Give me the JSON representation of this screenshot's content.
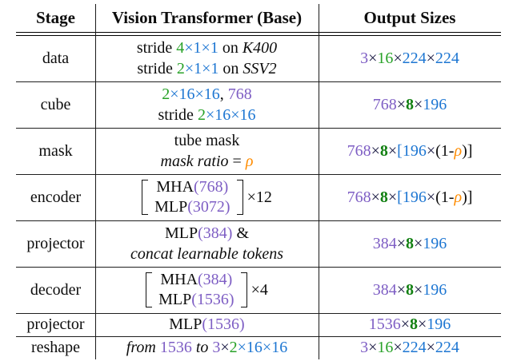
{
  "header": {
    "stage": "Stage",
    "middle": "Vision Transformer (Base)",
    "output": "Output Sizes"
  },
  "colors": {
    "text": "#0d0d0d",
    "green": "#28a228",
    "bold_green": "#128012",
    "blue": "#1d76d2",
    "purple": "#7e5ec4",
    "orange": "#ff8c00",
    "times": "#15153f"
  },
  "rows": [
    {
      "stage": "data",
      "lines": [
        [
          {
            "t": "stride ",
            "c": "text"
          },
          {
            "t": "4",
            "c": "green"
          },
          {
            "t": "×1×1",
            "c": "blue"
          },
          {
            "t": " on ",
            "c": "text"
          },
          {
            "t": "K400",
            "c": "text",
            "i": true
          }
        ],
        [
          {
            "t": "stride ",
            "c": "text"
          },
          {
            "t": "2",
            "c": "green"
          },
          {
            "t": "×1×1",
            "c": "blue"
          },
          {
            "t": " on ",
            "c": "text"
          },
          {
            "t": "SSV2",
            "c": "text",
            "i": true
          }
        ]
      ],
      "output": [
        {
          "t": "3",
          "c": "purple"
        },
        {
          "t": "×",
          "c": "times"
        },
        {
          "t": "16",
          "c": "green"
        },
        {
          "t": "×",
          "c": "times"
        },
        {
          "t": "224",
          "c": "blue"
        },
        {
          "t": "×",
          "c": "times"
        },
        {
          "t": "224",
          "c": "blue"
        }
      ]
    },
    {
      "stage": "cube",
      "lines": [
        [
          {
            "t": "2",
            "c": "green"
          },
          {
            "t": "×16×16",
            "c": "blue"
          },
          {
            "t": ", ",
            "c": "text"
          },
          {
            "t": "768",
            "c": "purple"
          }
        ],
        [
          {
            "t": "stride ",
            "c": "text"
          },
          {
            "t": "2",
            "c": "green"
          },
          {
            "t": "×16×16",
            "c": "blue"
          }
        ]
      ],
      "output": [
        {
          "t": "768",
          "c": "purple"
        },
        {
          "t": "×",
          "c": "times"
        },
        {
          "t": "8",
          "c": "bold_green",
          "b": true
        },
        {
          "t": "×",
          "c": "times"
        },
        {
          "t": "196",
          "c": "blue"
        }
      ]
    },
    {
      "stage": "mask",
      "lines": [
        [
          {
            "t": "tube mask",
            "c": "text"
          }
        ],
        [
          {
            "t": "mask ratio",
            "c": "text",
            "i": true
          },
          {
            "t": " = ",
            "c": "text"
          },
          {
            "t": "ρ",
            "c": "orange",
            "i": true
          }
        ]
      ],
      "output": [
        {
          "t": "768",
          "c": "purple"
        },
        {
          "t": "×",
          "c": "times"
        },
        {
          "t": "8",
          "c": "bold_green",
          "b": true
        },
        {
          "t": "×",
          "c": "times"
        },
        {
          "t": "[196",
          "c": "blue"
        },
        {
          "t": "×",
          "c": "times"
        },
        {
          "t": "(1-",
          "c": "text"
        },
        {
          "t": "ρ",
          "c": "orange",
          "i": true
        },
        {
          "t": ")]",
          "c": "text"
        }
      ]
    },
    {
      "stage": "encoder",
      "matrix": {
        "lines": [
          [
            {
              "t": "MHA",
              "c": "text"
            },
            {
              "t": "(768)",
              "c": "purple"
            }
          ],
          [
            {
              "t": "MLP",
              "c": "text"
            },
            {
              "t": "(3072)",
              "c": "purple"
            }
          ]
        ],
        "multiplier": "×12"
      },
      "output": [
        {
          "t": "768",
          "c": "purple"
        },
        {
          "t": "×",
          "c": "times"
        },
        {
          "t": "8",
          "c": "bold_green",
          "b": true
        },
        {
          "t": "×",
          "c": "times"
        },
        {
          "t": "[196",
          "c": "blue"
        },
        {
          "t": "×",
          "c": "times"
        },
        {
          "t": "(1-",
          "c": "text"
        },
        {
          "t": "ρ",
          "c": "orange",
          "i": true
        },
        {
          "t": ")]",
          "c": "text"
        }
      ]
    },
    {
      "stage": "projector",
      "lines": [
        [
          {
            "t": "MLP",
            "c": "text"
          },
          {
            "t": "(384)",
            "c": "purple"
          },
          {
            "t": " &",
            "c": "text"
          }
        ],
        [
          {
            "t": "concat learnable tokens",
            "c": "text",
            "i": true
          }
        ]
      ],
      "output": [
        {
          "t": "384",
          "c": "purple"
        },
        {
          "t": "×",
          "c": "times"
        },
        {
          "t": "8",
          "c": "bold_green",
          "b": true
        },
        {
          "t": "×",
          "c": "times"
        },
        {
          "t": "196",
          "c": "blue"
        }
      ]
    },
    {
      "stage": "decoder",
      "matrix": {
        "lines": [
          [
            {
              "t": "MHA",
              "c": "text"
            },
            {
              "t": "(384)",
              "c": "purple"
            }
          ],
          [
            {
              "t": "MLP",
              "c": "text"
            },
            {
              "t": "(1536)",
              "c": "purple"
            }
          ]
        ],
        "multiplier": "×4"
      },
      "output": [
        {
          "t": "384",
          "c": "purple"
        },
        {
          "t": "×",
          "c": "times"
        },
        {
          "t": "8",
          "c": "bold_green",
          "b": true
        },
        {
          "t": "×",
          "c": "times"
        },
        {
          "t": "196",
          "c": "blue"
        }
      ]
    },
    {
      "stage": "projector",
      "lines": [
        [
          {
            "t": "MLP",
            "c": "text"
          },
          {
            "t": "(1536)",
            "c": "purple"
          }
        ]
      ],
      "output": [
        {
          "t": "1536",
          "c": "purple"
        },
        {
          "t": "×",
          "c": "times"
        },
        {
          "t": "8",
          "c": "bold_green",
          "b": true
        },
        {
          "t": "×",
          "c": "times"
        },
        {
          "t": "196",
          "c": "blue"
        }
      ]
    },
    {
      "stage": "reshape",
      "lines": [
        [
          {
            "t": "from ",
            "c": "text",
            "i": true
          },
          {
            "t": "1536",
            "c": "purple"
          },
          {
            "t": " to ",
            "c": "text",
            "i": true
          },
          {
            "t": "3",
            "c": "purple"
          },
          {
            "t": "×",
            "c": "times"
          },
          {
            "t": "2",
            "c": "green"
          },
          {
            "t": "×16×16",
            "c": "blue"
          }
        ]
      ],
      "output": [
        {
          "t": "3",
          "c": "purple"
        },
        {
          "t": "×",
          "c": "times"
        },
        {
          "t": "16",
          "c": "green"
        },
        {
          "t": "×",
          "c": "times"
        },
        {
          "t": "224",
          "c": "blue"
        },
        {
          "t": "×",
          "c": "times"
        },
        {
          "t": "224",
          "c": "blue"
        }
      ]
    }
  ]
}
